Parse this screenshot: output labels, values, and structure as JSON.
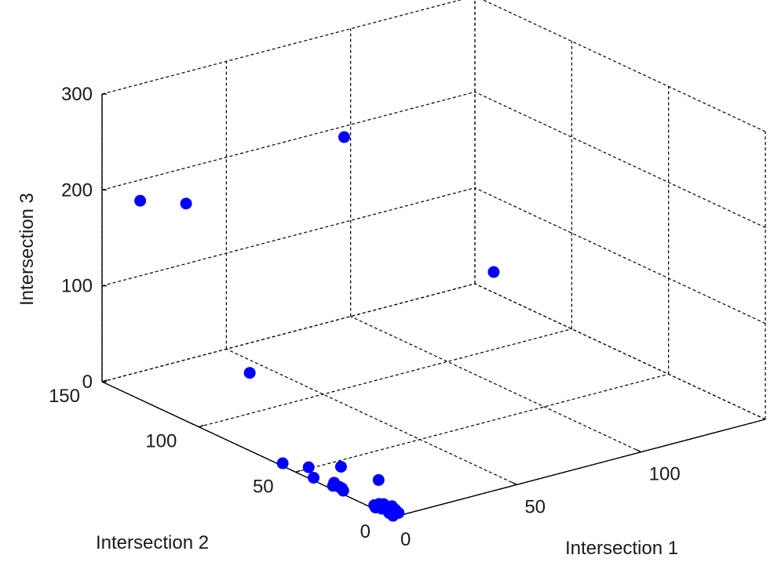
{
  "chart_data": {
    "type": "scatter3d",
    "xlabel": "Intersection 1",
    "ylabel": "Intersection 2",
    "zlabel": "Intersection 3",
    "xlim": [
      0,
      150
    ],
    "ylim": [
      0,
      150
    ],
    "zlim": [
      0,
      300
    ],
    "xticks": [
      0,
      50,
      100
    ],
    "yticks": [
      0,
      50,
      100,
      150
    ],
    "zticks": [
      0,
      100,
      200,
      300
    ],
    "grid": true,
    "marker_color": "#0000ff",
    "points": [
      {
        "x": 46,
        "y": 84,
        "z": 286
      },
      {
        "x": 12,
        "y": 122,
        "z": 204
      },
      {
        "x": 6,
        "y": 138,
        "z": 196
      },
      {
        "x": 82,
        "y": 53,
        "z": 150
      },
      {
        "x": 8,
        "y": 84,
        "z": 66
      },
      {
        "x": 12,
        "y": 42,
        "z": 5
      },
      {
        "x": 17,
        "y": 29,
        "z": 0
      },
      {
        "x": 6,
        "y": 51,
        "z": 0
      },
      {
        "x": 1,
        "y": 58,
        "z": 1
      },
      {
        "x": 3,
        "y": 34,
        "z": 2
      },
      {
        "x": 2,
        "y": 30,
        "z": 2
      },
      {
        "x": 3,
        "y": 30,
        "z": 0
      },
      {
        "x": 2,
        "y": 28,
        "z": 0
      },
      {
        "x": 1,
        "y": 32,
        "z": 2
      },
      {
        "x": 1,
        "y": 42,
        "z": 1
      },
      {
        "x": 2,
        "y": 12,
        "z": 0
      },
      {
        "x": 1,
        "y": 10,
        "z": 0
      },
      {
        "x": 2,
        "y": 11,
        "z": 0
      },
      {
        "x": 3,
        "y": 10,
        "z": 0
      },
      {
        "x": 4,
        "y": 12,
        "z": 0
      },
      {
        "x": 5,
        "y": 11,
        "z": 0
      },
      {
        "x": 2,
        "y": 8,
        "z": 0
      },
      {
        "x": 3,
        "y": 7,
        "z": 0
      },
      {
        "x": 3,
        "y": 5,
        "z": 0
      },
      {
        "x": 1,
        "y": 3,
        "z": 1
      },
      {
        "x": 1,
        "y": 1,
        "z": 0
      },
      {
        "x": 5,
        "y": 5,
        "z": 0
      },
      {
        "x": 6,
        "y": 8,
        "z": 0
      },
      {
        "x": 2,
        "y": 3,
        "z": 0
      },
      {
        "x": 4,
        "y": 2,
        "z": 0
      }
    ]
  }
}
